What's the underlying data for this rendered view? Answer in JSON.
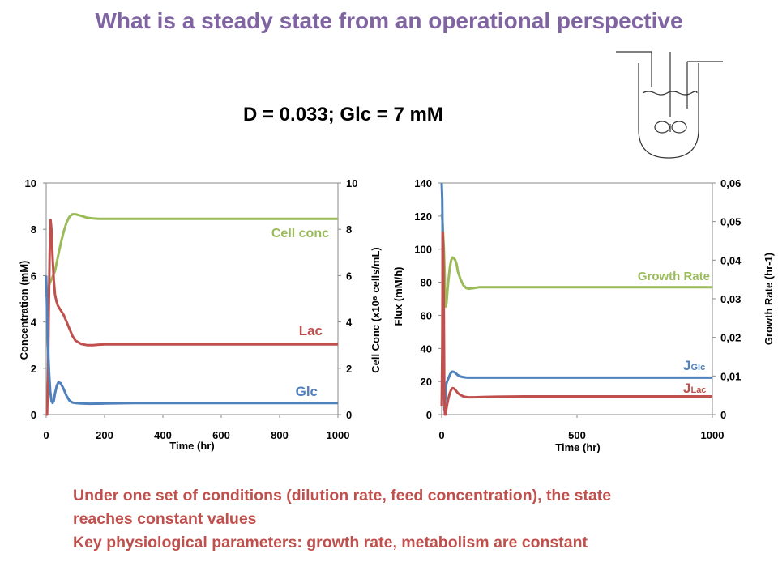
{
  "title": "What is a steady state from an operational perspective",
  "subtitle": "D = 0.033; Glc = 7 mM",
  "bottom_text": [
    "Under one set of conditions (dilution rate, feed concentration), the state",
    "reaches constant values",
    "Key physiological parameters: growth rate, metabolism are constant"
  ],
  "colors": {
    "title": "#8064a2",
    "green": "#9bbb59",
    "red": "#c0504d",
    "blue": "#4f81bd",
    "text_red": "#c0504d"
  },
  "icons": [
    "bioreactor-icon"
  ],
  "chart_data": [
    {
      "type": "line",
      "xlabel": "Time (hr)",
      "ylabel": "Concentration (mM)",
      "y2label": "Cell Conc (x10⁶ cells/mL)",
      "xlim": [
        0,
        1000
      ],
      "ylim": [
        0,
        10
      ],
      "y2lim": [
        0,
        10
      ],
      "xticks": [
        "0",
        "200",
        "400",
        "600",
        "800",
        "1000"
      ],
      "yticks": [
        "0",
        "2",
        "4",
        "6",
        "8",
        "10"
      ],
      "y2ticks": [
        "0",
        "2",
        "4",
        "6",
        "8",
        "10"
      ],
      "grid": false,
      "series": [
        {
          "name": "Cell conc",
          "color": "#9bbb59",
          "axis": "right",
          "x": [
            0,
            5,
            10,
            20,
            30,
            40,
            50,
            60,
            70,
            80,
            90,
            100,
            110,
            120,
            140,
            160,
            180,
            200,
            250,
            300,
            400,
            600,
            800,
            1000
          ],
          "y": [
            5.1,
            5.3,
            5.6,
            5.9,
            6.2,
            6.8,
            7.4,
            7.9,
            8.3,
            8.55,
            8.65,
            8.65,
            8.62,
            8.58,
            8.5,
            8.47,
            8.45,
            8.45,
            8.45,
            8.45,
            8.45,
            8.45,
            8.45,
            8.45
          ]
        },
        {
          "name": "Lac",
          "color": "#c0504d",
          "axis": "left",
          "x": [
            0,
            3,
            6,
            9,
            12,
            15,
            18,
            22,
            26,
            30,
            35,
            40,
            50,
            60,
            70,
            80,
            90,
            100,
            120,
            140,
            160,
            180,
            200,
            250,
            300,
            400,
            600,
            800,
            1000
          ],
          "y": [
            0,
            0,
            1.5,
            4.5,
            7.0,
            8.4,
            8.0,
            6.8,
            5.8,
            5.2,
            4.9,
            4.7,
            4.5,
            4.3,
            4.0,
            3.7,
            3.4,
            3.2,
            3.05,
            3.0,
            3.0,
            3.02,
            3.03,
            3.03,
            3.03,
            3.03,
            3.03,
            3.03,
            3.03
          ]
        },
        {
          "name": "Glc",
          "color": "#4f81bd",
          "axis": "left",
          "x": [
            0,
            3,
            6,
            10,
            14,
            18,
            22,
            26,
            30,
            36,
            42,
            50,
            60,
            70,
            80,
            90,
            100,
            120,
            150,
            200,
            300,
            400,
            600,
            800,
            1000
          ],
          "y": [
            6.0,
            4.5,
            3.0,
            1.8,
            1.0,
            0.6,
            0.5,
            0.6,
            0.9,
            1.25,
            1.4,
            1.35,
            1.1,
            0.8,
            0.6,
            0.52,
            0.5,
            0.48,
            0.47,
            0.48,
            0.5,
            0.5,
            0.5,
            0.5,
            0.5
          ]
        }
      ]
    },
    {
      "type": "line",
      "xlabel": "Time (hr)",
      "ylabel": "Flux (mM/h)",
      "y2label": "Growth Rate (hr-1)",
      "xlim": [
        0,
        1000
      ],
      "ylim": [
        0,
        140
      ],
      "y2lim": [
        0,
        0.06
      ],
      "xticks": [
        "0",
        "500",
        "1000"
      ],
      "yticks": [
        "0",
        "20",
        "40",
        "60",
        "80",
        "100",
        "120",
        "140"
      ],
      "y2ticks": [
        "0",
        "0,01",
        "0,02",
        "0,03",
        "0,04",
        "0,05",
        "0,06"
      ],
      "grid": false,
      "series": [
        {
          "name": "Growth Rate",
          "color": "#9bbb59",
          "axis": "right",
          "x": [
            0,
            2,
            4,
            6,
            8,
            10,
            12,
            14,
            16,
            18,
            20,
            25,
            30,
            35,
            40,
            45,
            50,
            55,
            60,
            70,
            80,
            90,
            100,
            110,
            120,
            140,
            160,
            200,
            300,
            500,
            1000
          ],
          "y": [
            0.052,
            0.051,
            0.049,
            0.046,
            0.043,
            0.039,
            0.034,
            0.03,
            0.028,
            0.029,
            0.031,
            0.035,
            0.038,
            0.04,
            0.0407,
            0.0405,
            0.04,
            0.039,
            0.037,
            0.035,
            0.0335,
            0.0328,
            0.0326,
            0.0327,
            0.0328,
            0.033,
            0.033,
            0.033,
            0.033,
            0.033,
            0.033
          ]
        },
        {
          "name": "J Glc",
          "color": "#4f81bd",
          "axis": "left",
          "x": [
            0,
            2,
            4,
            6,
            8,
            10,
            12,
            14,
            16,
            18,
            20,
            25,
            30,
            35,
            40,
            45,
            50,
            55,
            60,
            70,
            80,
            90,
            100,
            120,
            140,
            160,
            200,
            300,
            500,
            1000
          ],
          "y": [
            140,
            130,
            100,
            60,
            25,
            3,
            5,
            12,
            17,
            19,
            20,
            22,
            24,
            25.5,
            26,
            25.8,
            25.3,
            24.5,
            23.8,
            23,
            22.6,
            22.4,
            22.3,
            22.3,
            22.3,
            22.3,
            22.3,
            22.3,
            22.3,
            22.3
          ]
        },
        {
          "name": "J Lac",
          "color": "#c0504d",
          "axis": "left",
          "x": [
            0,
            2,
            4,
            6,
            8,
            10,
            12,
            14,
            16,
            18,
            20,
            25,
            30,
            35,
            40,
            45,
            50,
            55,
            60,
            70,
            80,
            90,
            100,
            120,
            150,
            200,
            300,
            500,
            1000
          ],
          "y": [
            5,
            40,
            110,
            100,
            60,
            10,
            0,
            0,
            2,
            4,
            6,
            10,
            13,
            15,
            16,
            15.8,
            15,
            14,
            13,
            11.8,
            11,
            10.6,
            10.5,
            10.5,
            10.6,
            10.8,
            11,
            11,
            11
          ]
        }
      ]
    }
  ],
  "legend_labels": {
    "cell_conc": "Cell conc",
    "lac": "Lac",
    "glc": "Glc",
    "growth_rate": "Growth Rate",
    "j_glc_main": "J",
    "j_glc_sub": "Glc",
    "j_lac_main": "J",
    "j_lac_sub": "Lac"
  }
}
